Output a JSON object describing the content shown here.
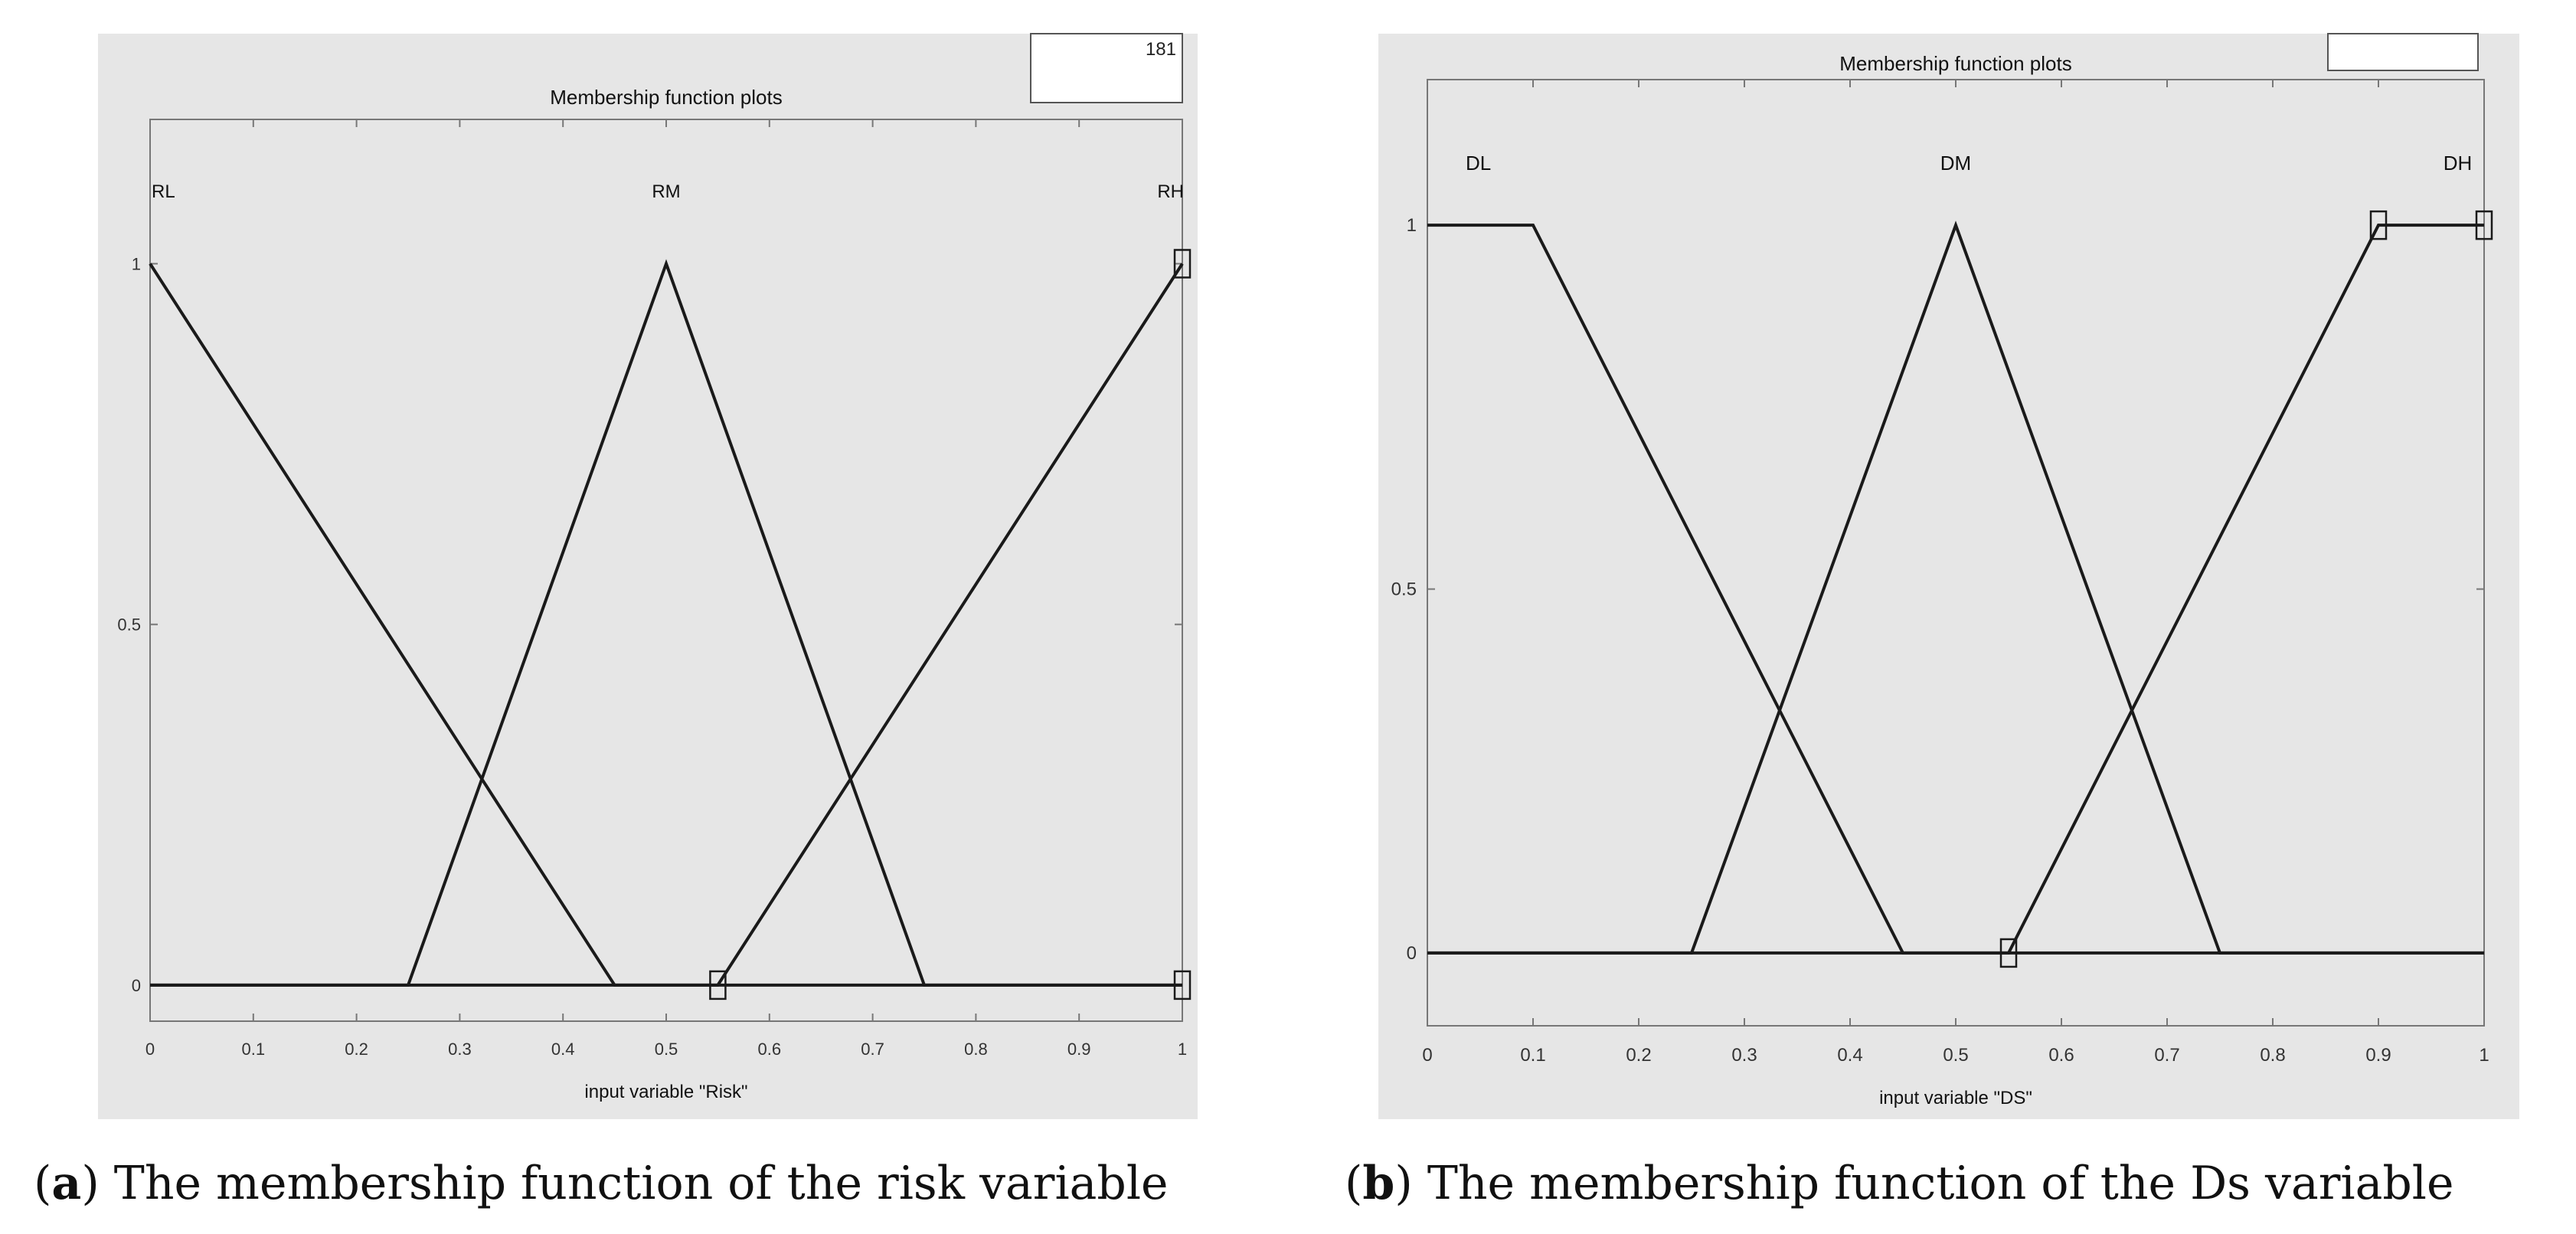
{
  "figure": {
    "captions": [
      {
        "letter": "a",
        "text": " The membership function of the risk variable"
      },
      {
        "letter": "b",
        "text": " The membership function of the Ds variable"
      }
    ],
    "panel_a_corner_text": "181"
  },
  "chart_data": [
    {
      "type": "line",
      "title": "Membership function plots",
      "xlabel": "input variable \"Risk\"",
      "ylabel": "",
      "xlim": [
        0,
        1
      ],
      "ylim": [
        -0.05,
        1.2
      ],
      "x_ticks": [
        "0",
        "0.1",
        "0.2",
        "0.3",
        "0.4",
        "0.5",
        "0.6",
        "0.7",
        "0.8",
        "0.9",
        "1"
      ],
      "y_ticks": [
        "0",
        "0.5",
        "1"
      ],
      "grid": false,
      "series": [
        {
          "name": "RL",
          "x": [
            0,
            0,
            0.45,
            1
          ],
          "y": [
            1,
            1,
            0,
            0
          ]
        },
        {
          "name": "RM",
          "x": [
            0,
            0.25,
            0.5,
            0.75,
            1
          ],
          "y": [
            0,
            0,
            1,
            0,
            0
          ]
        },
        {
          "name": "RH",
          "x": [
            0,
            0.55,
            1,
            1
          ],
          "y": [
            0,
            0,
            1,
            1
          ]
        }
      ],
      "selected_markers": [
        {
          "x": 0.55,
          "y": 0
        },
        {
          "x": 1,
          "y": 1
        },
        {
          "x": 1,
          "y": 0
        }
      ],
      "colors": {
        "background": "#e6e6e6",
        "line": "#1a1a1a"
      }
    },
    {
      "type": "line",
      "title": "Membership function plots",
      "xlabel": "input variable \"DS\"",
      "ylabel": "",
      "xlim": [
        0,
        1
      ],
      "ylim": [
        -0.1,
        1.2
      ],
      "x_ticks": [
        "0",
        "0.1",
        "0.2",
        "0.3",
        "0.4",
        "0.5",
        "0.6",
        "0.7",
        "0.8",
        "0.9",
        "1"
      ],
      "y_ticks": [
        "0",
        "0.5",
        "1"
      ],
      "grid": false,
      "series": [
        {
          "name": "DL",
          "x": [
            0,
            0.1,
            0.45,
            1
          ],
          "y": [
            1,
            1,
            0,
            0
          ]
        },
        {
          "name": "DM",
          "x": [
            0,
            0.25,
            0.5,
            0.75,
            1
          ],
          "y": [
            0,
            0,
            1,
            0,
            0
          ]
        },
        {
          "name": "DH",
          "x": [
            0,
            0.55,
            0.9,
            1
          ],
          "y": [
            0,
            0,
            1,
            1
          ]
        }
      ],
      "selected_markers": [
        {
          "x": 0.55,
          "y": 0
        },
        {
          "x": 0.9,
          "y": 1
        },
        {
          "x": 1,
          "y": 1
        }
      ],
      "colors": {
        "background": "#e6e6e6",
        "line": "#1a1a1a"
      }
    }
  ]
}
